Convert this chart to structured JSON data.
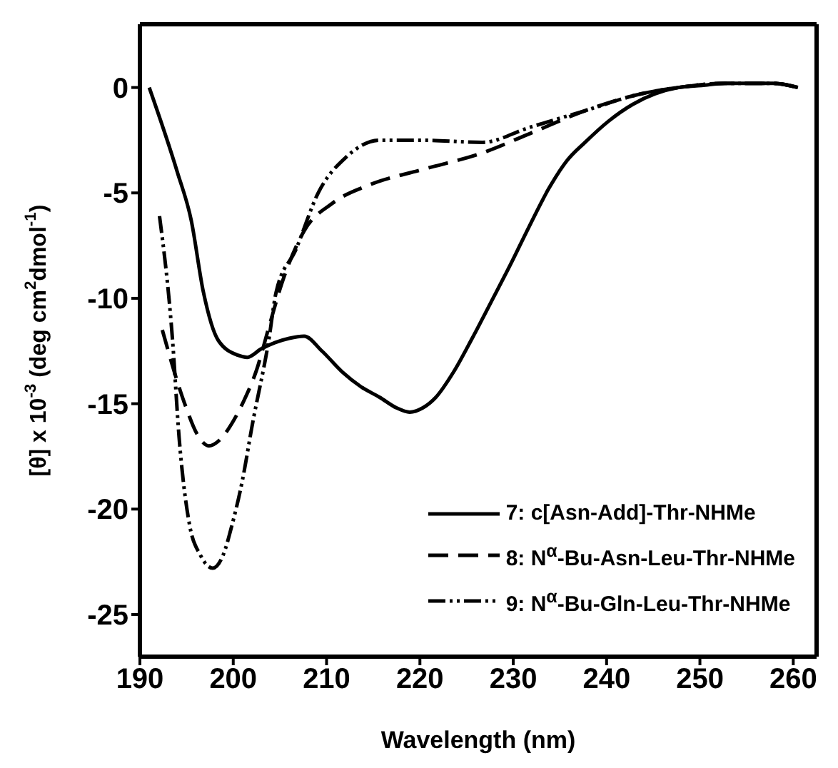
{
  "chart_data": {
    "type": "line",
    "xlabel": "Wavelength (nm)",
    "ylabel": "[θ] x 10$^{-3}$ (deg cm$^{2}$dmol$^{-1}$)",
    "xlim": [
      190,
      262.5
    ],
    "xticks": [
      190,
      200,
      210,
      220,
      230,
      240,
      250,
      260
    ],
    "ylim": [
      -27,
      3
    ],
    "yticks": [
      -25,
      -20,
      -15,
      -10,
      -5,
      0
    ],
    "grid": false,
    "legend": "bottom right",
    "marker": "none",
    "series": [
      {
        "name": "7: c[Asn-Add]-Thr-NHMe",
        "color": "#000000",
        "line_style": "solid",
        "x": [
          191,
          194,
          195.5,
          196.8,
          198.4,
          200.5,
          201.5,
          203,
          204.5,
          206,
          207.6,
          209.5,
          211.7,
          213.7,
          215.7,
          217.5,
          218.9,
          220.3,
          221.7,
          223.6,
          225.6,
          227.6,
          229.7,
          231.7,
          233.8,
          235.7,
          237.7,
          240.2,
          242.8,
          245.2,
          247.7,
          250.2,
          252.7,
          255.2,
          257.8,
          260.5
        ],
        "values": [
          0,
          -4,
          -6.3,
          -9.7,
          -12,
          -12.7,
          -12.8,
          -12.4,
          -12.1,
          -11.9,
          -11.8,
          -12.5,
          -13.5,
          -14.2,
          -14.7,
          -15.2,
          -15.4,
          -15.2,
          -14.7,
          -13.5,
          -11.9,
          -10.2,
          -8.4,
          -6.6,
          -4.8,
          -3.5,
          -2.6,
          -1.6,
          -0.8,
          -0.3,
          0,
          0.1,
          0.2,
          0.2,
          0.2,
          0
        ]
      },
      {
        "name": "8: N$^{α}$-Bu-Asn-Leu-Thr-NHMe",
        "color": "#000000",
        "line_style": "dashed",
        "x": [
          192.4,
          194.8,
          196.2,
          197.4,
          198.6,
          199.9,
          201.2,
          202.5,
          203.8,
          205.2,
          207.6,
          210.6,
          214.7,
          220.2,
          226.7,
          231.7,
          237.7,
          243.7,
          247.7,
          252.7,
          257.8,
          260.5
        ],
        "values": [
          -11.5,
          -15,
          -16.5,
          -17,
          -16.7,
          -15.9,
          -14.8,
          -13.4,
          -11.4,
          -9.3,
          -6.8,
          -5.5,
          -4.6,
          -3.9,
          -3.1,
          -2.2,
          -1.1,
          -0.3,
          0,
          0.2,
          0.2,
          0
        ]
      },
      {
        "name": "9: N$^{α}$-Bu-Gln-Leu-Thr-NHMe",
        "color": "#000000",
        "line_style": "dotted",
        "x": [
          192.1,
          193.5,
          194.2,
          195.3,
          196.5,
          197.8,
          198.9,
          199.9,
          201,
          202,
          203.8,
          204.6,
          206.7,
          209.1,
          212.1,
          215.7,
          220.2,
          226.7,
          231.7,
          237.7,
          243.7,
          247.7,
          252.7,
          257.8,
          260.5
        ],
        "values": [
          -6.1,
          -12,
          -16.6,
          -20.7,
          -22.2,
          -22.8,
          -22.2,
          -20.7,
          -18.6,
          -16.1,
          -12,
          -9.7,
          -7.7,
          -5,
          -3.3,
          -2.5,
          -2.5,
          -2.6,
          -1.9,
          -1.1,
          -0.3,
          0,
          0.2,
          0.2,
          0
        ]
      }
    ]
  }
}
